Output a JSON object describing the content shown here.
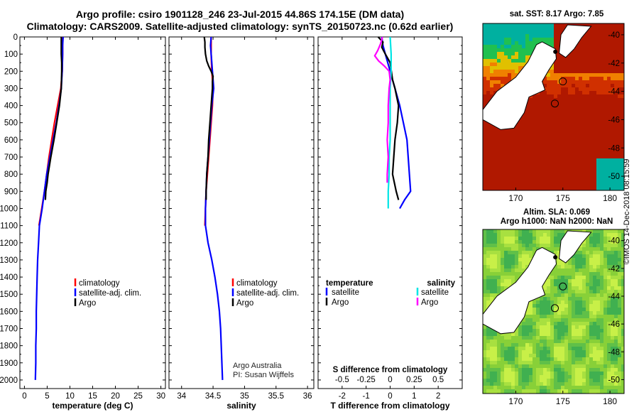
{
  "header": {
    "title_line1": "Argo profile: csiro 1901128_246 23-Jul-2015 44.86S 174.15E (DM data)",
    "title_line2": "Climatology: CARS2009. Satellite-adjusted climatology: synTS_20150723.nc (0.62d earlier)"
  },
  "map_top": {
    "title": "sat. SST: 8.17 Argo: 7.85",
    "xticks": [
      "170",
      "175",
      "180"
    ],
    "yticks": [
      "-40",
      "-42",
      "-44",
      "-46",
      "-48",
      "-50"
    ]
  },
  "map_bottom": {
    "title_line1": "Altim. SLA: 0.069",
    "title_line2": "Argo h1000: NaN h2000: NaN",
    "xticks": [
      "170",
      "175",
      "180"
    ],
    "yticks": [
      "-40",
      "-42",
      "-44",
      "-46",
      "-48",
      "-50"
    ]
  },
  "credit": "©IMOS 14-Dec-2018 08:15:59",
  "attribution": {
    "line1": "Argo Australia",
    "line2": "PI: Susan Wijffels"
  },
  "colors": {
    "climatology": "#ff0000",
    "satellite": "#0000ff",
    "argo": "#000000",
    "sat_s": "#00e5e5",
    "argo_s": "#ff00ff"
  },
  "chart_data": [
    {
      "type": "line",
      "xlabel": "temperature (deg C)",
      "xlim": [
        -1,
        31
      ],
      "xticks": [
        "0",
        "5",
        "10",
        "15",
        "20",
        "25",
        "30"
      ],
      "ylim": [
        0,
        2050
      ],
      "yticks": [
        "0",
        "100",
        "200",
        "300",
        "400",
        "500",
        "600",
        "700",
        "800",
        "900",
        "1000",
        "1100",
        "1200",
        "1300",
        "1400",
        "1500",
        "1600",
        "1700",
        "1800",
        "1900",
        "2000"
      ],
      "grid": false,
      "legend": "bottom-center",
      "series": [
        {
          "name": "climatology",
          "color": "#ff0000",
          "depth": [
            0,
            50,
            100,
            200,
            300,
            400,
            500,
            600,
            700,
            800,
            900,
            1000,
            1100
          ],
          "values": [
            8.4,
            8.4,
            8.4,
            8.3,
            8.0,
            7.3,
            6.6,
            6.0,
            5.4,
            4.9,
            4.4,
            3.8,
            3.2
          ]
        },
        {
          "name": "satellite-adj. clim.",
          "color": "#0000ff",
          "depth": [
            0,
            50,
            100,
            200,
            300,
            400,
            500,
            600,
            700,
            800,
            900,
            1000,
            1100,
            1200,
            1300,
            1400,
            1500,
            1600,
            1700,
            1800,
            1900,
            2000
          ],
          "values": [
            8.5,
            8.4,
            8.4,
            8.3,
            8.1,
            7.6,
            7.0,
            6.3,
            5.6,
            4.9,
            4.4,
            3.9,
            3.3,
            3.1,
            2.9,
            2.8,
            2.7,
            2.6,
            2.6,
            2.5,
            2.5,
            2.4
          ]
        },
        {
          "name": "Argo",
          "color": "#000000",
          "depth": [
            0,
            50,
            100,
            150,
            200,
            300,
            400,
            500,
            600,
            700,
            800,
            850,
            900,
            950
          ],
          "values": [
            8.1,
            8.1,
            8.1,
            8.2,
            8.2,
            8.1,
            7.7,
            7.1,
            6.5,
            5.8,
            5.2,
            5.0,
            4.7,
            4.6
          ]
        }
      ]
    },
    {
      "type": "line",
      "xlabel": "salinity",
      "xlim": [
        33.8,
        36.1
      ],
      "xticks": [
        "34",
        "34.5",
        "35",
        "35.5",
        "36"
      ],
      "ylim": [
        0,
        2050
      ],
      "grid": false,
      "legend": "bottom-center",
      "series": [
        {
          "name": "climatology",
          "color": "#ff0000",
          "depth": [
            0,
            50,
            100,
            200,
            300,
            400,
            500,
            600,
            700,
            800,
            900,
            1000,
            1100
          ],
          "values": [
            34.47,
            34.47,
            34.47,
            34.48,
            34.5,
            34.49,
            34.47,
            34.45,
            34.43,
            34.41,
            34.39,
            34.38,
            34.37
          ]
        },
        {
          "name": "satellite-adj. clim.",
          "color": "#0000ff",
          "depth": [
            0,
            50,
            100,
            200,
            300,
            400,
            500,
            600,
            700,
            800,
            900,
            1000,
            1100,
            1200,
            1300,
            1400,
            1500,
            1600,
            1700,
            1800,
            1900,
            2000
          ],
          "values": [
            34.47,
            34.46,
            34.47,
            34.49,
            34.51,
            34.48,
            34.46,
            34.44,
            34.42,
            34.4,
            34.39,
            34.38,
            34.38,
            34.42,
            34.48,
            34.53,
            34.57,
            34.6,
            34.62,
            34.63,
            34.64,
            34.65
          ]
        },
        {
          "name": "Argo",
          "color": "#000000",
          "depth": [
            0,
            30,
            60,
            100,
            140,
            170,
            200,
            230,
            260,
            300,
            400,
            500,
            600,
            700,
            800,
            900,
            950
          ],
          "values": [
            34.36,
            34.37,
            34.37,
            34.38,
            34.4,
            34.43,
            34.47,
            34.5,
            34.49,
            34.49,
            34.47,
            34.45,
            34.43,
            34.42,
            34.4,
            34.39,
            34.39
          ]
        }
      ]
    },
    {
      "type": "line",
      "xlabel": "T difference from climatology",
      "xlim": [
        -3,
        3
      ],
      "xticks": [
        "-2",
        "-1",
        "0",
        "1",
        "2"
      ],
      "xlabel_top": "S difference from climatology",
      "xlim_top": [
        -0.75,
        0.75
      ],
      "xticks_top": [
        "-0.5",
        "-0.25",
        "0",
        "0.25",
        "0.5"
      ],
      "ylim": [
        0,
        2050
      ],
      "grid": false,
      "legend": "bottom",
      "legend_headers": [
        "temperature",
        "salinity"
      ],
      "series": [
        {
          "name": "satellite",
          "group": "temperature",
          "color": "#0000ff",
          "depth": [
            0,
            50,
            100,
            200,
            300,
            400,
            500,
            600,
            700,
            800,
            900,
            950,
            1000
          ],
          "values": [
            -0.35,
            -0.3,
            -0.2,
            0.0,
            0.2,
            0.4,
            0.55,
            0.7,
            0.75,
            0.8,
            0.85,
            0.6,
            0.4
          ]
        },
        {
          "name": "Argo",
          "group": "temperature",
          "color": "#000000",
          "depth": [
            0,
            30,
            60,
            100,
            150,
            200,
            250,
            300,
            400,
            500,
            600,
            700,
            800,
            900,
            950
          ],
          "values": [
            -0.5,
            -0.3,
            -0.35,
            -0.2,
            0.0,
            0.05,
            0.1,
            0.2,
            0.35,
            0.3,
            0.2,
            0.15,
            0.1,
            0.25,
            0.35
          ]
        },
        {
          "name": "satellite",
          "group": "salinity",
          "color": "#00e5e5",
          "depth": [
            0,
            100,
            200,
            300,
            400,
            500,
            600,
            700,
            800,
            900,
            1000
          ],
          "values": [
            0.0,
            0.01,
            0.01,
            0.0,
            0.0,
            0.0,
            0.0,
            -0.01,
            -0.01,
            -0.02,
            -0.02
          ]
        },
        {
          "name": "Argo",
          "group": "salinity",
          "color": "#ff00ff",
          "depth": [
            0,
            40,
            80,
            110,
            140,
            170,
            200,
            250,
            300,
            400,
            500,
            600,
            700,
            800,
            850
          ],
          "values": [
            -0.08,
            -0.1,
            -0.13,
            -0.16,
            -0.12,
            -0.06,
            -0.01,
            0.0,
            -0.01,
            -0.02,
            -0.02,
            -0.03,
            -0.02,
            -0.03,
            -0.03
          ]
        }
      ]
    }
  ]
}
